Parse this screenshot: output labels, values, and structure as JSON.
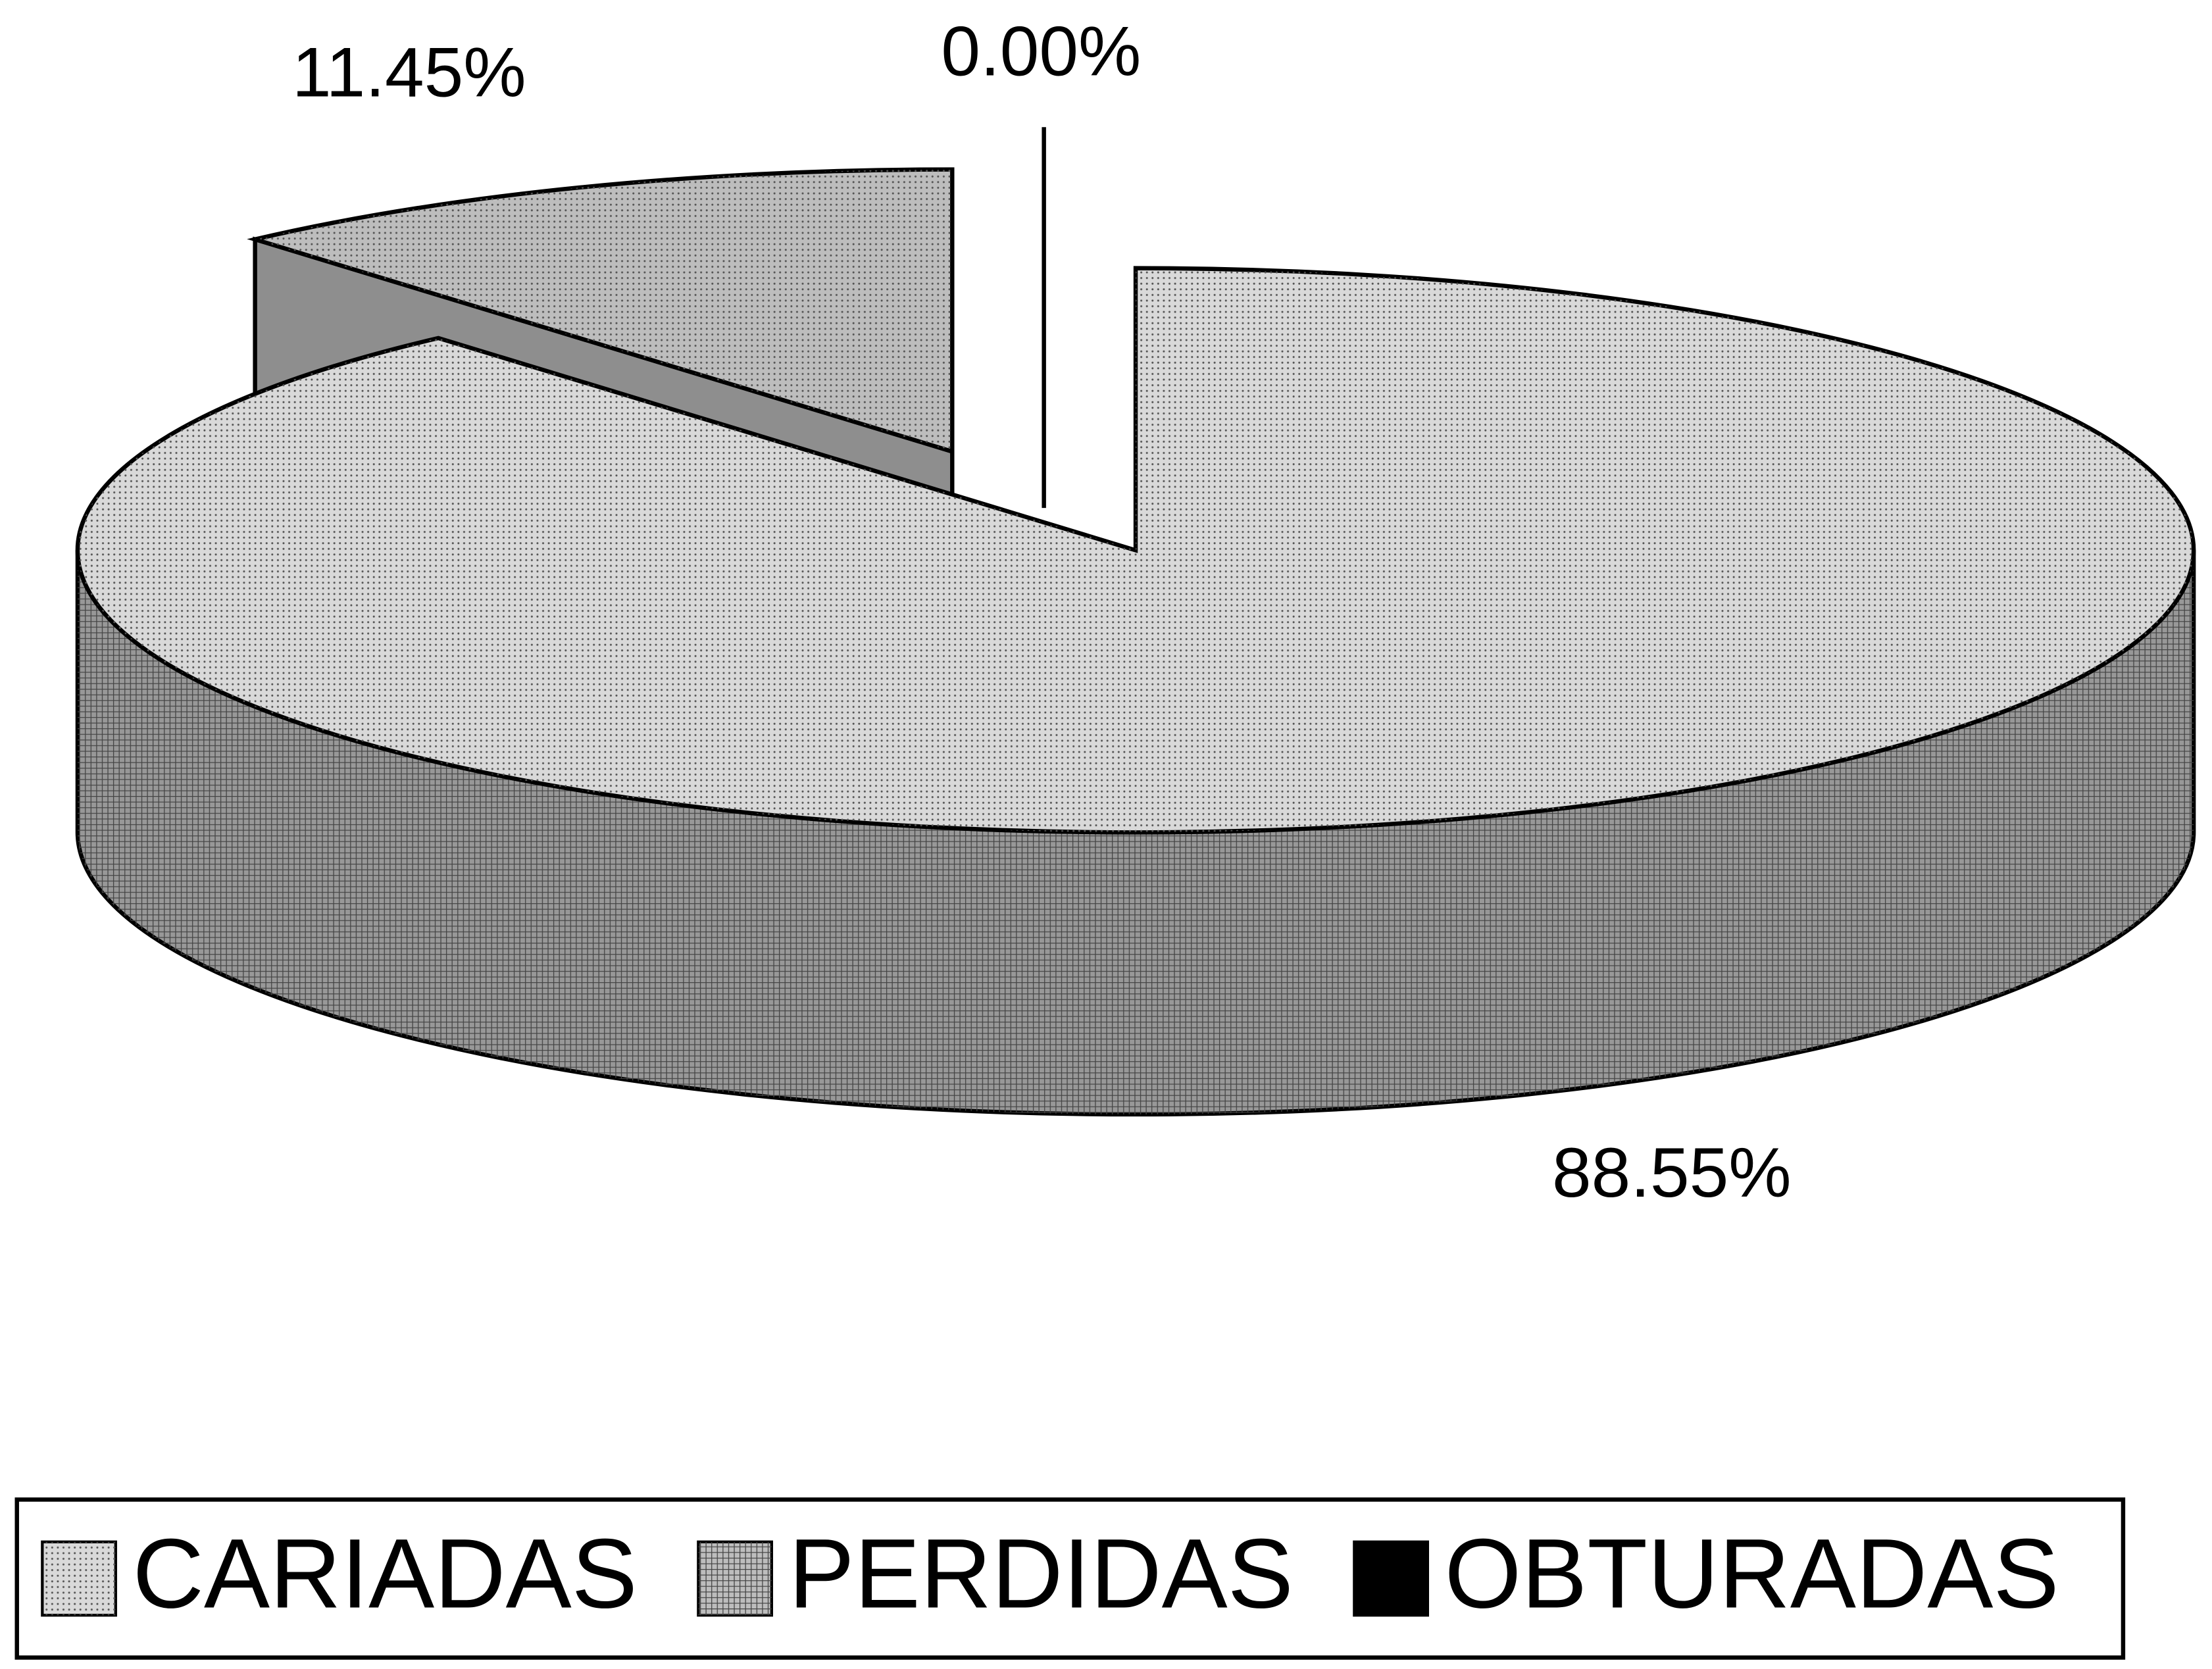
{
  "chart_data": {
    "type": "pie",
    "categories": [
      "CARIADAS",
      "PERDIDAS",
      "OBTURADAS"
    ],
    "values": [
      88.55,
      11.45,
      0.0
    ],
    "value_labels": [
      "88.55%",
      "11.45%",
      "0.00%"
    ],
    "colors": [
      "#d9d9d9",
      "#bdbdbd",
      "#000000"
    ],
    "legend": "bottom"
  }
}
